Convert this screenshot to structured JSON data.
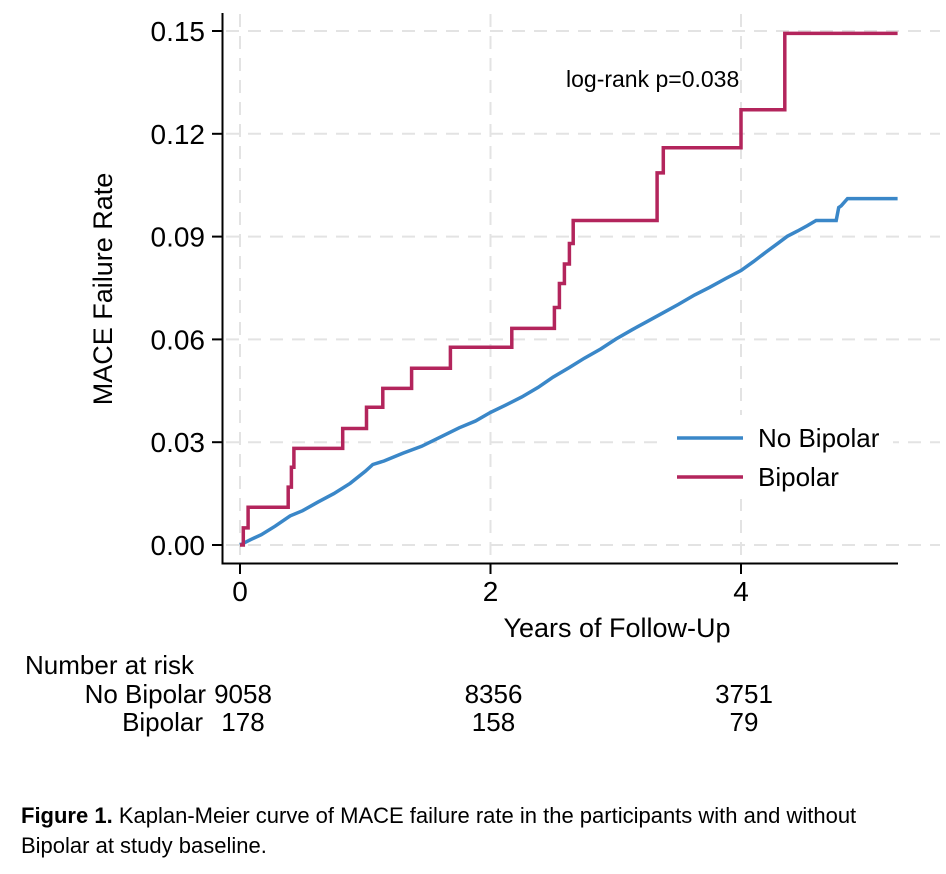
{
  "chart_data": {
    "type": "line",
    "title": "",
    "xlabel": "Years of Follow-Up",
    "ylabel": "MACE Failure Rate",
    "annotation": "log-rank p=0.038",
    "xlim": [
      0,
      5.25
    ],
    "ylim": [
      0,
      0.15
    ],
    "grid": "dashed",
    "legend_position": "inside-right",
    "x_ticks": [
      0,
      2,
      4
    ],
    "x_tick_labels": [
      "0",
      "2",
      "4"
    ],
    "y_ticks": [
      0,
      0.03,
      0.06,
      0.09,
      0.12,
      0.15
    ],
    "y_tick_labels": [
      "0.00",
      "0.03",
      "0.06",
      "0.09",
      "0.12",
      "0.15"
    ],
    "series": [
      {
        "name": "No Bipolar",
        "color": "#3a87c8",
        "mode": "line",
        "points": [
          [
            0,
            0
          ],
          [
            0.08,
            0.0015
          ],
          [
            0.17,
            0.003
          ],
          [
            0.28,
            0.0055
          ],
          [
            0.4,
            0.0085
          ],
          [
            0.5,
            0.01
          ],
          [
            0.62,
            0.0125
          ],
          [
            0.75,
            0.015
          ],
          [
            0.88,
            0.018
          ],
          [
            1.0,
            0.0215
          ],
          [
            1.06,
            0.0235
          ],
          [
            1.15,
            0.0245
          ],
          [
            1.3,
            0.0268
          ],
          [
            1.45,
            0.0288
          ],
          [
            1.6,
            0.0315
          ],
          [
            1.75,
            0.0342
          ],
          [
            1.88,
            0.0362
          ],
          [
            2.0,
            0.0387
          ],
          [
            2.12,
            0.0408
          ],
          [
            2.25,
            0.0432
          ],
          [
            2.38,
            0.046
          ],
          [
            2.5,
            0.049
          ],
          [
            2.63,
            0.0518
          ],
          [
            2.75,
            0.0545
          ],
          [
            2.88,
            0.0572
          ],
          [
            3.0,
            0.0601
          ],
          [
            3.13,
            0.0628
          ],
          [
            3.25,
            0.0652
          ],
          [
            3.38,
            0.0678
          ],
          [
            3.5,
            0.0702
          ],
          [
            3.63,
            0.073
          ],
          [
            3.75,
            0.0752
          ],
          [
            3.88,
            0.0778
          ],
          [
            4.0,
            0.0801
          ],
          [
            4.1,
            0.0827
          ],
          [
            4.2,
            0.0855
          ],
          [
            4.3,
            0.0882
          ],
          [
            4.37,
            0.0901
          ],
          [
            4.45,
            0.0916
          ],
          [
            4.53,
            0.0932
          ],
          [
            4.6,
            0.0947
          ],
          [
            4.76,
            0.0947
          ],
          [
            4.78,
            0.0985
          ],
          [
            4.8,
            0.099
          ],
          [
            4.85,
            0.1011
          ],
          [
            5.25,
            0.1011
          ]
        ]
      },
      {
        "name": "Bipolar",
        "color": "#b3255c",
        "mode": "step",
        "points": [
          [
            0,
            0
          ],
          [
            0.026,
            0.005
          ],
          [
            0.065,
            0.011
          ],
          [
            0.385,
            0.0169
          ],
          [
            0.41,
            0.0227
          ],
          [
            0.43,
            0.0282
          ],
          [
            0.82,
            0.034
          ],
          [
            1.01,
            0.0402
          ],
          [
            1.14,
            0.0457
          ],
          [
            1.37,
            0.0516
          ],
          [
            1.68,
            0.0577
          ],
          [
            2.17,
            0.0632
          ],
          [
            2.51,
            0.0693
          ],
          [
            2.55,
            0.0763
          ],
          [
            2.59,
            0.082
          ],
          [
            2.63,
            0.088
          ],
          [
            2.66,
            0.0947
          ],
          [
            3.33,
            0.1086
          ],
          [
            3.38,
            0.1159
          ],
          [
            4.0,
            0.127
          ],
          [
            4.35,
            0.1493
          ],
          [
            5.25,
            0.1493
          ]
        ]
      }
    ],
    "risk_table": {
      "title": "Number at risk",
      "times": [
        0,
        2,
        4
      ],
      "rows": [
        {
          "label": "No Bipolar",
          "counts": [
            "9058",
            "8356",
            "3751"
          ]
        },
        {
          "label": "Bipolar",
          "counts": [
            "178",
            "158",
            "79"
          ]
        }
      ]
    }
  },
  "caption": {
    "label": "Figure 1.",
    "text": "Kaplan-Meier curve of MACE failure rate in the participants with and without Bipolar at study baseline."
  }
}
